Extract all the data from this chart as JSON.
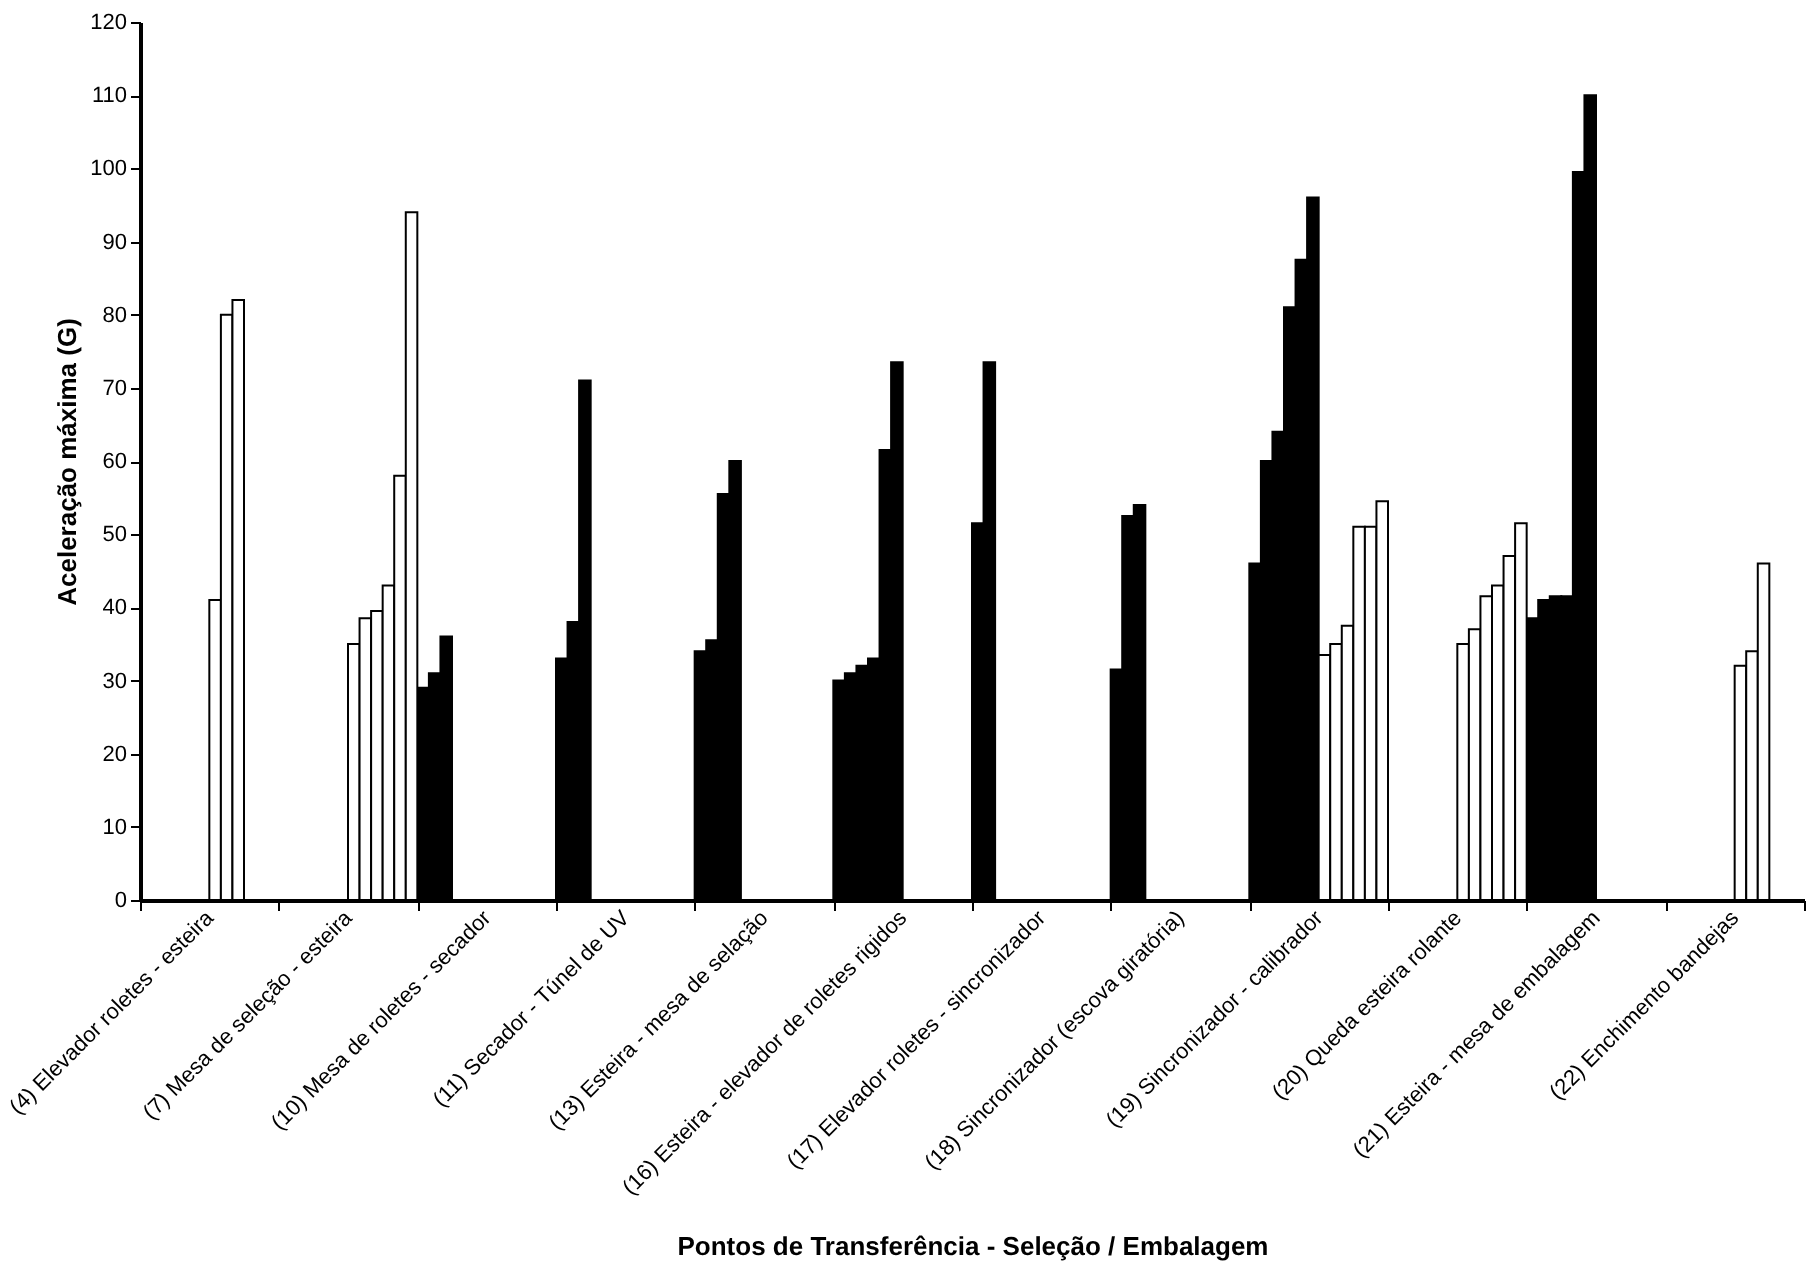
{
  "chart_data": {
    "type": "bar",
    "xlabel": "Pontos de Transferência - Seleção / Embalagem",
    "ylabel": "Aceleração máxima (G)",
    "categories": [
      "(4) Elevador roletes - esteira",
      "(7) Mesa de seleção - esteira",
      "(10) Mesa de roletes - secador",
      "(11) Secador - Túnel de UV",
      "(13) Esteira - mesa de selação",
      "(16) Esteira - elevador de roletes rigidos",
      "(17) Elevador roletes - sincronizador",
      "(18) Sincronizador (escova giratória)",
      "(19) Sincronizador - calibrador",
      "(20) Queda esteira rolante",
      "(21) Esteira - mesa de embalagem",
      "(22) Enchimento bandejas"
    ],
    "series": [
      {
        "color": "#000000",
        "values": [
          null,
          null,
          29,
          33,
          34,
          30,
          51.5,
          31.5,
          46,
          null,
          38.5,
          null
        ]
      },
      {
        "color": "#000000",
        "values": [
          null,
          null,
          31,
          38,
          35.5,
          31,
          73.5,
          52.5,
          60,
          null,
          41,
          null
        ]
      },
      {
        "color": "#000000",
        "values": [
          null,
          null,
          36,
          71,
          55.5,
          32,
          null,
          54,
          64,
          null,
          41.5,
          null
        ]
      },
      {
        "color": "#000000",
        "values": [
          null,
          null,
          null,
          null,
          60,
          33,
          null,
          null,
          81,
          null,
          41.5,
          null
        ]
      },
      {
        "color": "#000000",
        "values": [
          null,
          null,
          null,
          null,
          null,
          61.5,
          null,
          null,
          87.5,
          null,
          99.5,
          null
        ]
      },
      {
        "color": "#000000",
        "values": [
          null,
          null,
          null,
          null,
          null,
          73.5,
          null,
          null,
          96,
          null,
          110,
          null
        ]
      },
      {
        "color": "#ffffff",
        "values": [
          41,
          35,
          null,
          null,
          null,
          null,
          null,
          null,
          33.5,
          35,
          null,
          32
        ]
      },
      {
        "color": "#ffffff",
        "values": [
          80,
          38.5,
          null,
          null,
          null,
          null,
          null,
          null,
          35,
          37,
          null,
          34
        ]
      },
      {
        "color": "#ffffff",
        "values": [
          82,
          39.5,
          null,
          null,
          null,
          null,
          null,
          null,
          37.5,
          41.5,
          null,
          46
        ]
      },
      {
        "color": "#ffffff",
        "values": [
          null,
          43,
          null,
          null,
          null,
          null,
          null,
          null,
          51,
          43,
          null,
          null
        ]
      },
      {
        "color": "#ffffff",
        "values": [
          null,
          58,
          null,
          null,
          null,
          null,
          null,
          null,
          51,
          47,
          null,
          null
        ]
      },
      {
        "color": "#ffffff",
        "values": [
          null,
          94,
          null,
          null,
          null,
          null,
          null,
          null,
          54.5,
          51.5,
          null,
          null
        ]
      }
    ],
    "ylim": [
      0,
      120
    ],
    "yticks": [
      0,
      10,
      20,
      30,
      40,
      50,
      60,
      70,
      80,
      90,
      100,
      110,
      120
    ],
    "grid": false
  }
}
